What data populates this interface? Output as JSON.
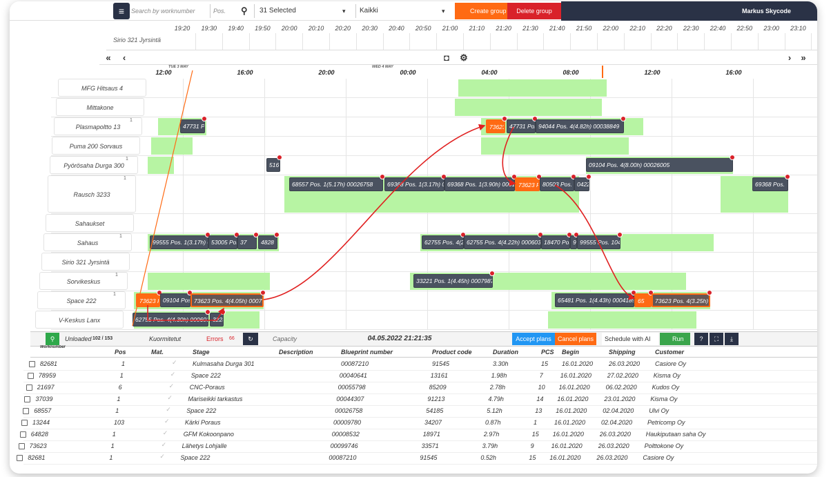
{
  "toolbar": {
    "search_placeholder": "Search by worknumber",
    "pos_placeholder": "Pos.",
    "selection": "31 Selected",
    "filter": "Kaikki",
    "create": "Create group",
    "delete": "Delete group",
    "user": "Markus Skycode"
  },
  "ruler": {
    "row_label": "Sirio 321 Jyrsintä",
    "times": [
      "19:20",
      "19:30",
      "19:40",
      "19:50",
      "20:00",
      "20:10",
      "20:20",
      "20:30",
      "20:40",
      "20:50",
      "21:00",
      "21:10",
      "21:20",
      "21:30",
      "21:40",
      "21:50",
      "22:00",
      "22:10",
      "22:20",
      "22:30",
      "22:40",
      "22:50",
      "23:00",
      "23:10"
    ]
  },
  "gantt": {
    "dates": [
      "TUE 3 MAY",
      "WED 4 MAY"
    ],
    "hours": [
      "12:00",
      "16:00",
      "20:00",
      "00:00",
      "04:00",
      "08:00",
      "12:00",
      "16:00"
    ],
    "resources": [
      {
        "name": "MFG Hitsaus 4"
      },
      {
        "name": "Mittakone"
      },
      {
        "name": "Plasmapoltto 13",
        "badge": "1",
        "bars": [
          "47731 P",
          "73623",
          "47731 Pos.",
          "94044 Pos. 4(4.82h) 00038849"
        ]
      },
      {
        "name": "Puma 200 Sorvaus"
      },
      {
        "name": "Pyörösaha Durga 300",
        "badge": "1",
        "bars": [
          "516",
          "09104 Pos. 4(8.00h) 00026005"
        ]
      },
      {
        "name": "Rausch 3233",
        "badge": "1",
        "bars": [
          "68557 Pos. 1(5.17h) 00026758",
          "69368 Pos. 1(3.17h) 00",
          "69368 Pos. 1(3.90h) 0001",
          "73623 P",
          "80503 Pos. 1",
          "0422",
          "69368 Pos."
        ]
      },
      {
        "name": "Sahaukset"
      },
      {
        "name": "Sahaus",
        "badge": "1",
        "bars": [
          "99555 Pos. 1(3.17h) 00",
          "53005 Pos",
          "37",
          "4828",
          "62755 Pos. 4(2.",
          "62755 Pos. 4(4.22h) 00060312",
          "18470 Pos.",
          "9",
          "99555 Pos. 104("
        ]
      },
      {
        "name": "Sirio 321 Jyrsintä"
      },
      {
        "name": "Sorvikeskus",
        "badge": "1",
        "bars": [
          "33221 Pos. 1(4.45h) 00079870"
        ]
      },
      {
        "name": "Space 222",
        "badge": "1",
        "bars": [
          "73623 P",
          "09104 Pos.",
          "73623 Pos. 4(4.05h) 0007926",
          "65481 Pos. 1(4.43h) 00041894",
          "65",
          "73623 Pos. 4(3.25h) 00"
        ]
      },
      {
        "name": "V-Keskus Lanx",
        "bars": [
          "62755 Pos. 4(4.30h) 00060312",
          "3223"
        ]
      }
    ]
  },
  "panel": {
    "unloaded": "Unloaded",
    "unloaded_count": "102 / 153",
    "loaded": "Kuormitetut",
    "errors": "Errors",
    "errors_count": "66",
    "capacity": "Capacity",
    "timestamp": "04.05.2022 21:21:35",
    "accept": "Accept plans",
    "cancel": "Cancel plans",
    "schedule": "Schedule with AI",
    "run": "Run"
  },
  "table": {
    "headers": [
      "Worknumber",
      "Pos",
      "Mat.",
      "Stage",
      "Description",
      "Blueprint number",
      "Product code",
      "Duration",
      "PCS",
      "Begin",
      "Shipping",
      "Customer"
    ],
    "rows": [
      [
        "82681",
        "1",
        "Kulmasaha Durga 301",
        "00087210",
        "91545",
        "3.30h",
        "15",
        "16.01.2020",
        "26.03.2020",
        "Casiore Oy"
      ],
      [
        "78959",
        "1",
        "Space 222",
        "00040641",
        "13161",
        "1.98h",
        "7",
        "16.01.2020",
        "27.02.2020",
        "Kisma Oy"
      ],
      [
        "21697",
        "6",
        "CNC-Poraus",
        "00055798",
        "85209",
        "2.78h",
        "10",
        "16.01.2020",
        "06.02.2020",
        "Kudos Oy"
      ],
      [
        "37039",
        "1",
        "Mariseikki tarkastus",
        "00044307",
        "91213",
        "4.79h",
        "14",
        "16.01.2020",
        "23.01.2020",
        "Kisma Oy"
      ],
      [
        "68557",
        "1",
        "Space 222",
        "00026758",
        "54185",
        "5.12h",
        "13",
        "16.01.2020",
        "02.04.2020",
        "Ulvi Oy"
      ],
      [
        "13244",
        "103",
        "Kärki Poraus",
        "00009780",
        "34207",
        "0.87h",
        "1",
        "16.01.2020",
        "02.04.2020",
        "Petricomp Oy"
      ],
      [
        "64828",
        "1",
        "GFM Kokoonpano",
        "00008532",
        "18971",
        "2.97h",
        "15",
        "16.01.2020",
        "26.03.2020",
        "Haukiputaan saha Oy"
      ],
      [
        "73623",
        "1",
        "Lähetys Lohjalle",
        "00099746",
        "33571",
        "3.79h",
        "9",
        "16.01.2020",
        "26.03.2020",
        "Polttokone Oy"
      ],
      [
        "82681",
        "1",
        "Space 222",
        "00087210",
        "91545",
        "0.52h",
        "15",
        "16.01.2020",
        "26.03.2020",
        "Casiore Oy"
      ]
    ]
  }
}
